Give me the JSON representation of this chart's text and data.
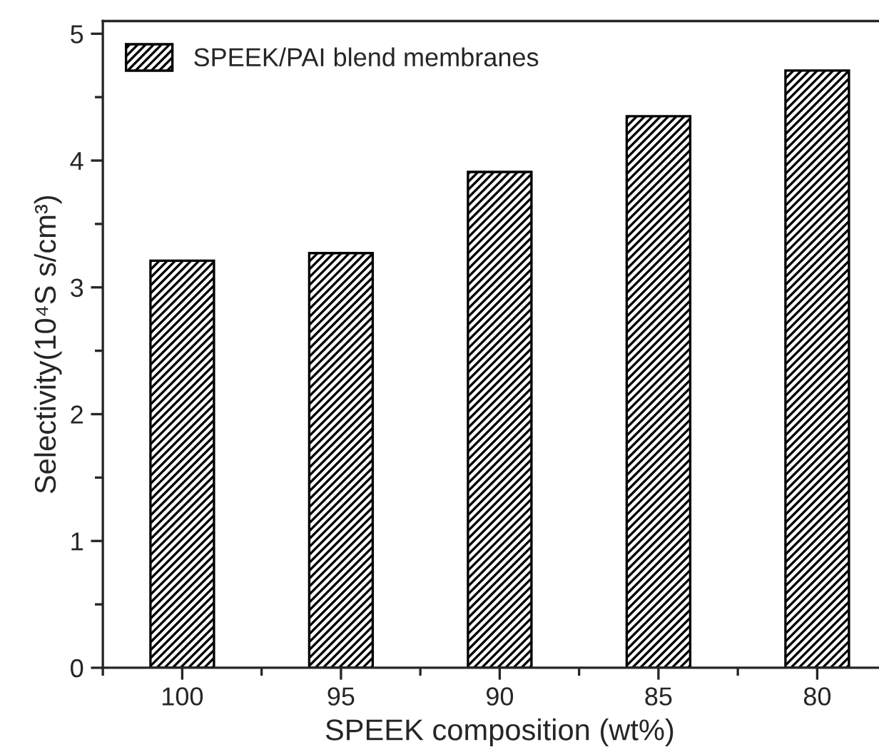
{
  "chart_data": {
    "type": "bar",
    "xlabel": "SPEEK composition (wt%)",
    "ylabel": "Selectivity(10⁴S s/cm³)",
    "categories": [
      "100",
      "95",
      "90",
      "85",
      "80"
    ],
    "series": [
      {
        "name": "SPEEK/PAI blend membranes",
        "color": "#000000",
        "values": [
          3.21,
          3.27,
          3.91,
          4.35,
          4.71
        ]
      }
    ],
    "ylim": [
      0,
      5.1
    ],
    "yticks": [
      0,
      1,
      2,
      3,
      4,
      5
    ],
    "grid": false,
    "legend": "top left"
  }
}
